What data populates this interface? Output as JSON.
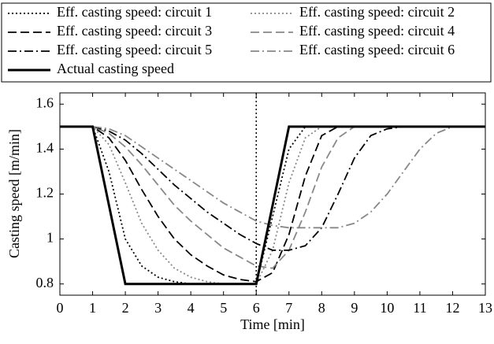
{
  "chart_data": {
    "type": "line",
    "x_label": "Time [min]",
    "y_label": "Casting speed [m/min]",
    "x": [
      0,
      0.5,
      1,
      1.5,
      2,
      2.5,
      3,
      3.5,
      4,
      4.5,
      5,
      5.5,
      6,
      6.5,
      7,
      7.5,
      8,
      8.5,
      9,
      9.5,
      10,
      10.5,
      11,
      11.5,
      12,
      12.5,
      13
    ],
    "xlim": [
      0,
      13
    ],
    "xticks": [
      0,
      1,
      2,
      3,
      4,
      5,
      6,
      7,
      8,
      9,
      10,
      11,
      12,
      13
    ],
    "ylim": [
      0.75,
      1.65
    ],
    "yticks": [
      0.8,
      1,
      1.2,
      1.4,
      1.6
    ],
    "vline": 6,
    "grid": false,
    "series": [
      {
        "name": "Eff. casting speed: circuit 1",
        "color": "#000000",
        "dash": "dotted",
        "values": [
          1.5,
          1.5,
          1.5,
          1.3,
          1.0,
          0.88,
          0.83,
          0.81,
          0.8,
          0.8,
          0.8,
          0.8,
          0.8,
          1.1,
          1.4,
          1.5,
          1.5,
          1.5,
          1.5,
          1.5,
          1.5,
          1.5,
          1.5,
          1.5,
          1.5,
          1.5,
          1.5
        ]
      },
      {
        "name": "Eff. casting speed: circuit 2",
        "color": "#888888",
        "dash": "dotted",
        "values": [
          1.5,
          1.5,
          1.5,
          1.42,
          1.25,
          1.07,
          0.95,
          0.87,
          0.83,
          0.81,
          0.8,
          0.8,
          0.8,
          0.95,
          1.25,
          1.45,
          1.5,
          1.5,
          1.5,
          1.5,
          1.5,
          1.5,
          1.5,
          1.5,
          1.5,
          1.5,
          1.5
        ]
      },
      {
        "name": "Eff. casting speed: circuit 3",
        "color": "#000000",
        "dash": "dashed",
        "values": [
          1.5,
          1.5,
          1.5,
          1.45,
          1.35,
          1.22,
          1.1,
          1.0,
          0.93,
          0.88,
          0.84,
          0.82,
          0.81,
          0.85,
          1.02,
          1.28,
          1.46,
          1.5,
          1.5,
          1.5,
          1.5,
          1.5,
          1.5,
          1.5,
          1.5,
          1.5,
          1.5
        ]
      },
      {
        "name": "Eff. casting speed: circuit 4",
        "color": "#888888",
        "dash": "dashed",
        "values": [
          1.5,
          1.5,
          1.5,
          1.47,
          1.41,
          1.33,
          1.24,
          1.15,
          1.08,
          1.02,
          0.96,
          0.92,
          0.88,
          0.87,
          0.95,
          1.12,
          1.32,
          1.45,
          1.5,
          1.5,
          1.5,
          1.5,
          1.5,
          1.5,
          1.5,
          1.5,
          1.5
        ]
      },
      {
        "name": "Eff. casting speed: circuit 5",
        "color": "#000000",
        "dash": "dashdot",
        "values": [
          1.5,
          1.5,
          1.5,
          1.48,
          1.44,
          1.38,
          1.31,
          1.24,
          1.18,
          1.12,
          1.07,
          1.02,
          0.98,
          0.95,
          0.95,
          0.97,
          1.05,
          1.2,
          1.36,
          1.46,
          1.49,
          1.5,
          1.5,
          1.5,
          1.5,
          1.5,
          1.5
        ]
      },
      {
        "name": "Eff. casting speed: circuit 6",
        "color": "#888888",
        "dash": "dashdot",
        "values": [
          1.5,
          1.5,
          1.5,
          1.49,
          1.46,
          1.41,
          1.36,
          1.31,
          1.26,
          1.21,
          1.16,
          1.12,
          1.08,
          1.06,
          1.05,
          1.05,
          1.05,
          1.05,
          1.07,
          1.12,
          1.2,
          1.3,
          1.4,
          1.47,
          1.5,
          1.5,
          1.5
        ]
      },
      {
        "name": "Actual casting speed",
        "color": "#000000",
        "dash": "solid",
        "width": 3,
        "x": [
          0,
          1,
          2,
          6,
          7,
          13
        ],
        "values": [
          1.5,
          1.5,
          0.8,
          0.8,
          1.5,
          1.5
        ]
      }
    ]
  }
}
